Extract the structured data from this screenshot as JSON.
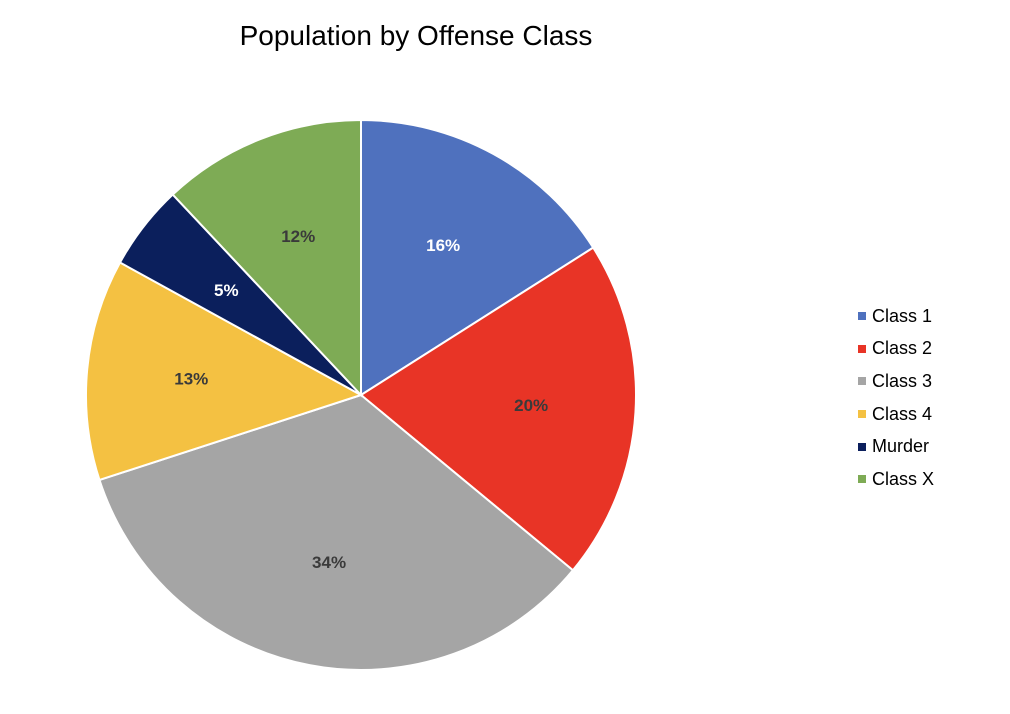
{
  "chart_data": {
    "type": "pie",
    "title": "Population by Offense Class",
    "categories": [
      "Class 1",
      "Class 2",
      "Class 3",
      "Class 4",
      "Murder",
      "Class X"
    ],
    "values": [
      16,
      20,
      34,
      13,
      5,
      12
    ],
    "labels": [
      "16%",
      "20%",
      "34%",
      "13%",
      "5%",
      "12%"
    ],
    "colors": [
      "#4F71BE",
      "#E83426",
      "#A5A5A5",
      "#F4C142",
      "#0B1F5C",
      "#7EAB55"
    ],
    "label_colors": [
      "#FFFFFF",
      "#3A3A3A",
      "#3A3A3A",
      "#3A3A3A",
      "#FFFFFF",
      "#3A3A3A"
    ],
    "start_angle_deg": 0,
    "direction": "clockwise",
    "legend_position": "right"
  }
}
